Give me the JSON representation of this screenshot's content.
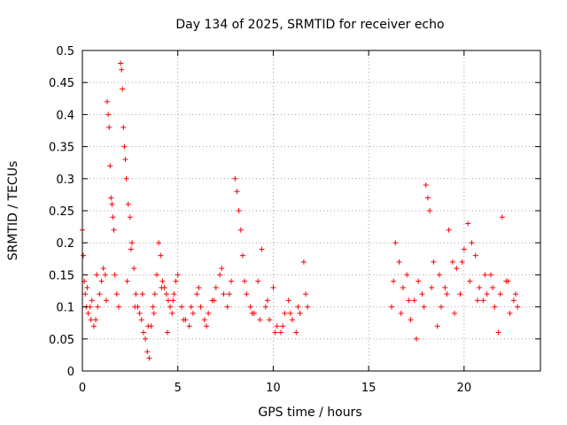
{
  "chart_data": {
    "type": "scatter",
    "title": "Day 134 of 2025, SRMTID for receiver echo",
    "xlabel": "GPS time / hours",
    "ylabel": "SRMTID / TECUs",
    "xlim": [
      0,
      24
    ],
    "ylim": [
      0,
      0.5
    ],
    "xticks": [
      0,
      5,
      10,
      15,
      20
    ],
    "yticks": [
      0,
      0.05,
      0.1,
      0.15,
      0.2,
      0.25,
      0.3,
      0.35,
      0.4,
      0.45,
      0.5
    ],
    "grid": true,
    "marker": "+",
    "color": "#ff0000",
    "data_gap_hours": [
      12.0,
      16.2
    ],
    "series": [
      {
        "name": "SRMTID",
        "x": [
          0.0,
          0.05,
          0.1,
          0.15,
          0.2,
          0.3,
          0.4,
          0.5,
          0.6,
          0.7,
          0.8,
          0.9,
          1.0,
          1.1,
          1.2,
          1.3,
          1.35,
          1.4,
          1.45,
          1.5,
          1.55,
          1.6,
          1.7,
          1.8,
          1.9,
          2.0,
          2.05,
          2.1,
          2.15,
          2.2,
          2.25,
          2.3,
          2.4,
          2.5,
          2.6,
          2.7,
          2.8,
          2.9,
          3.0,
          3.1,
          3.2,
          3.3,
          3.4,
          3.5,
          3.6,
          3.7,
          3.8,
          3.9,
          4.0,
          4.1,
          4.2,
          4.3,
          4.4,
          4.5,
          4.6,
          4.7,
          4.8,
          4.9,
          5.0,
          5.2,
          5.4,
          5.6,
          5.8,
          6.0,
          6.2,
          6.4,
          6.6,
          6.8,
          7.0,
          7.2,
          7.4,
          7.6,
          7.8,
          8.0,
          8.1,
          8.2,
          8.3,
          8.4,
          8.6,
          8.8,
          9.0,
          9.2,
          9.4,
          9.6,
          9.8,
          10.0,
          10.2,
          10.4,
          10.6,
          10.8,
          11.0,
          11.2,
          11.4,
          11.6,
          11.8,
          16.2,
          16.4,
          16.6,
          16.8,
          17.0,
          17.2,
          17.4,
          17.6,
          17.8,
          18.0,
          18.1,
          18.2,
          18.4,
          18.6,
          18.8,
          19.0,
          19.2,
          19.4,
          19.6,
          19.8,
          20.0,
          20.2,
          20.4,
          20.6,
          20.8,
          21.0,
          21.2,
          21.4,
          21.6,
          21.8,
          22.0,
          22.2,
          22.4,
          22.6,
          22.8,
          0.25,
          0.45,
          0.75,
          1.25,
          1.65,
          2.35,
          2.55,
          2.75,
          3.15,
          3.45,
          3.75,
          4.15,
          4.45,
          4.75,
          5.3,
          5.7,
          6.1,
          6.5,
          6.9,
          7.3,
          7.7,
          8.5,
          8.9,
          9.3,
          9.7,
          10.1,
          10.5,
          10.9,
          11.3,
          11.7,
          16.3,
          16.7,
          17.1,
          17.5,
          17.9,
          18.3,
          18.7,
          19.1,
          19.5,
          19.9,
          20.3,
          20.7,
          21.1,
          21.5,
          21.9,
          22.3,
          22.7
        ],
        "y": [
          0.22,
          0.18,
          0.14,
          0.12,
          0.1,
          0.09,
          0.1,
          0.11,
          0.07,
          0.08,
          0.1,
          0.12,
          0.14,
          0.16,
          0.15,
          0.42,
          0.4,
          0.38,
          0.32,
          0.27,
          0.26,
          0.24,
          0.15,
          0.12,
          0.1,
          0.48,
          0.47,
          0.44,
          0.38,
          0.35,
          0.33,
          0.3,
          0.26,
          0.24,
          0.2,
          0.16,
          0.12,
          0.1,
          0.09,
          0.08,
          0.06,
          0.05,
          0.03,
          0.02,
          0.07,
          0.1,
          0.12,
          0.15,
          0.2,
          0.18,
          0.14,
          0.13,
          0.12,
          0.11,
          0.1,
          0.09,
          0.12,
          0.14,
          0.15,
          0.1,
          0.08,
          0.07,
          0.09,
          0.12,
          0.1,
          0.08,
          0.09,
          0.11,
          0.13,
          0.15,
          0.12,
          0.1,
          0.14,
          0.3,
          0.28,
          0.25,
          0.22,
          0.18,
          0.12,
          0.1,
          0.09,
          0.14,
          0.19,
          0.1,
          0.08,
          0.13,
          0.07,
          0.06,
          0.09,
          0.11,
          0.08,
          0.06,
          0.09,
          0.17,
          0.1,
          0.1,
          0.2,
          0.17,
          0.13,
          0.15,
          0.08,
          0.11,
          0.14,
          0.12,
          0.29,
          0.27,
          0.25,
          0.17,
          0.07,
          0.1,
          0.13,
          0.22,
          0.17,
          0.16,
          0.12,
          0.19,
          0.23,
          0.2,
          0.18,
          0.13,
          0.11,
          0.12,
          0.15,
          0.1,
          0.06,
          0.24,
          0.14,
          0.09,
          0.11,
          0.1,
          0.13,
          0.08,
          0.15,
          0.11,
          0.22,
          0.14,
          0.19,
          0.1,
          0.12,
          0.07,
          0.09,
          0.13,
          0.06,
          0.11,
          0.08,
          0.1,
          0.13,
          0.07,
          0.11,
          0.16,
          0.12,
          0.14,
          0.09,
          0.08,
          0.11,
          0.06,
          0.07,
          0.09,
          0.1,
          0.12,
          0.14,
          0.09,
          0.11,
          0.05,
          0.1,
          0.13,
          0.15,
          0.12,
          0.09,
          0.17,
          0.14,
          0.11,
          0.15,
          0.13,
          0.12,
          0.14,
          0.12
        ]
      }
    ]
  }
}
